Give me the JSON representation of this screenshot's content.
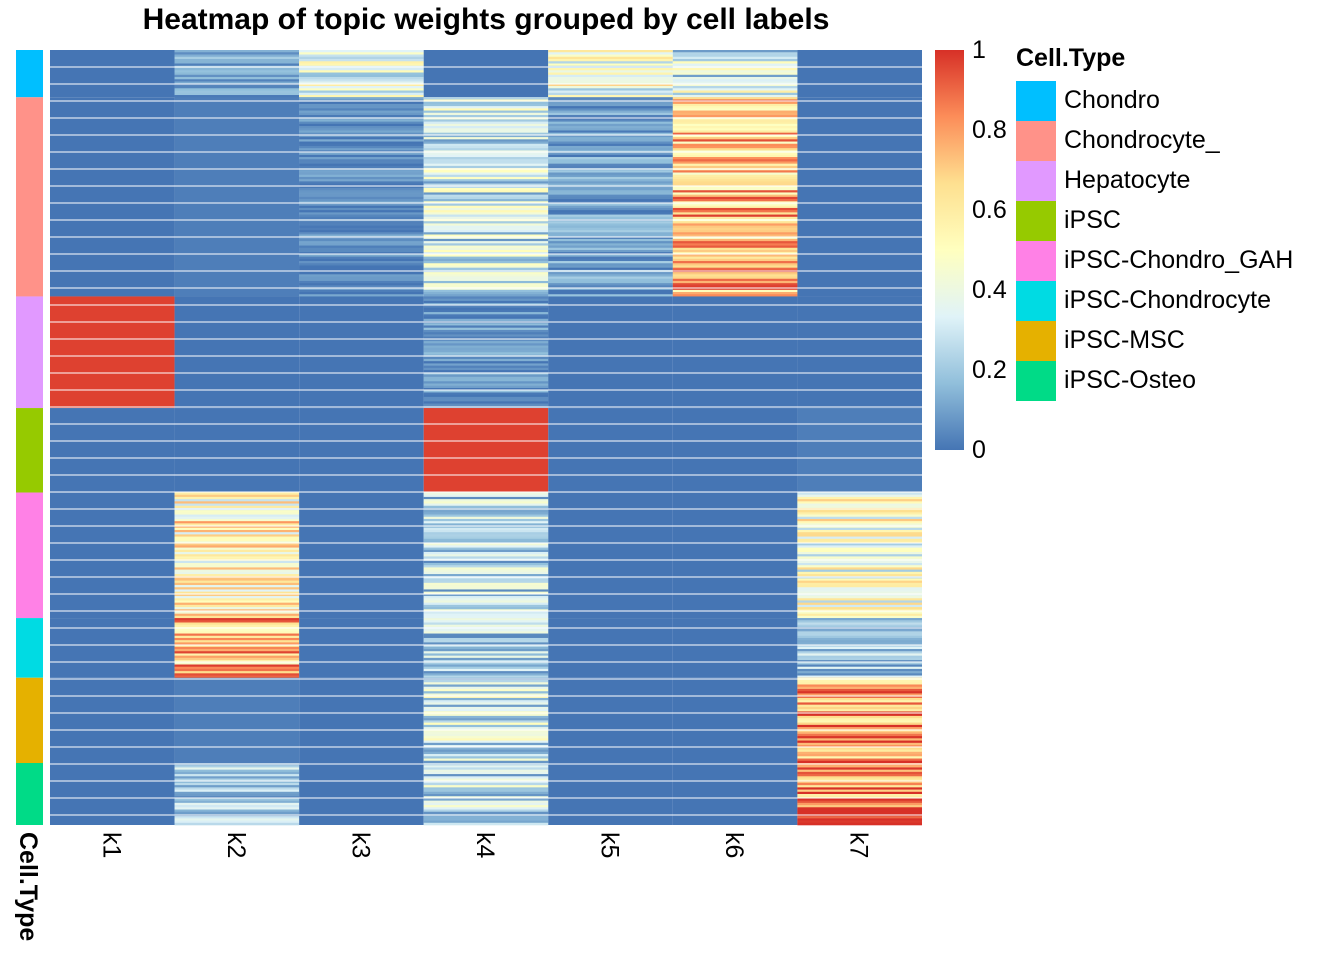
{
  "chart_data": {
    "type": "heatmap",
    "title": "Heatmap of topic weights grouped by cell labels",
    "columns": [
      "k1",
      "k2",
      "k3",
      "k4",
      "k5",
      "k6",
      "k7"
    ],
    "row_annotation_label": "Cell.Type",
    "color_scale": {
      "min": 0,
      "max": 1,
      "ticks": [
        {
          "value": 0,
          "label": "0"
        },
        {
          "value": 0.2,
          "label": "0.2"
        },
        {
          "value": 0.4,
          "label": "0.4"
        },
        {
          "value": 0.6,
          "label": "0.6"
        },
        {
          "value": 0.8,
          "label": "0.8"
        },
        {
          "value": 1,
          "label": "1"
        }
      ],
      "colors": [
        "#4575b4",
        "#91bfdb",
        "#e0f3f8",
        "#ffffbf",
        "#fee090",
        "#fc8d59",
        "#d73027"
      ]
    },
    "legend": {
      "title": "Cell.Type",
      "placement": "right",
      "entries": [
        {
          "name": "Chondro",
          "color": "#00bfff"
        },
        {
          "name": "Chondrocyte_",
          "color": "#ff9289"
        },
        {
          "name": "Hepatocyte",
          "color": "#e199ff"
        },
        {
          "name": "iPSC",
          "color": "#96ca00"
        },
        {
          "name": "iPSC-Chondro_GAH",
          "color": "#ff81e6"
        },
        {
          "name": "iPSC-Chondrocyte",
          "color": "#00dbe3"
        },
        {
          "name": "iPSC-MSC",
          "color": "#e5b100"
        },
        {
          "name": "iPSC-Osteo",
          "color": "#00db87"
        }
      ]
    },
    "groups": [
      {
        "label": "Chondro",
        "share": 0.061,
        "mean_weights": [
          0.0,
          0.1,
          0.35,
          0.0,
          0.45,
          0.35,
          0.0
        ]
      },
      {
        "label": "Chondrocyte_",
        "share": 0.257,
        "mean_weights": [
          0.0,
          0.02,
          0.05,
          0.3,
          0.1,
          0.72,
          0.0
        ]
      },
      {
        "label": "Hepatocyte",
        "share": 0.144,
        "mean_weights": [
          0.97,
          0.0,
          0.0,
          0.08,
          0.0,
          0.0,
          0.0
        ]
      },
      {
        "label": "iPSC",
        "share": 0.109,
        "mean_weights": [
          0.0,
          0.0,
          0.0,
          0.97,
          0.0,
          0.0,
          0.02
        ]
      },
      {
        "label": "iPSC-Chondro_GAH",
        "share": 0.162,
        "mean_weights": [
          0.0,
          0.55,
          0.0,
          0.25,
          0.0,
          0.0,
          0.45
        ]
      },
      {
        "label": "iPSC-Chondrocyte",
        "share": 0.077,
        "mean_weights": [
          0.0,
          0.72,
          0.0,
          0.25,
          0.0,
          0.0,
          0.2
        ]
      },
      {
        "label": "iPSC-MSC",
        "share": 0.11,
        "mean_weights": [
          0.0,
          0.02,
          0.0,
          0.33,
          0.0,
          0.0,
          0.8
        ]
      },
      {
        "label": "iPSC-Osteo",
        "share": 0.08,
        "mean_weights": [
          0.0,
          0.2,
          0.0,
          0.28,
          0.0,
          0.0,
          0.85
        ]
      }
    ]
  }
}
